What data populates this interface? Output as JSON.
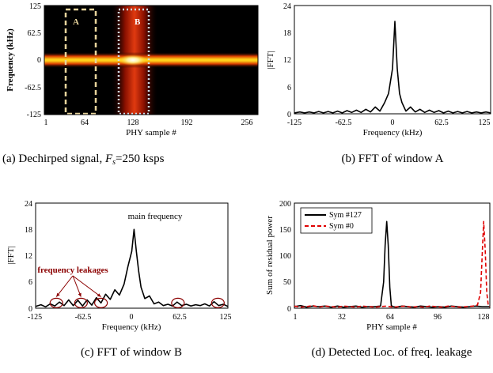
{
  "chart_data": [
    {
      "type": "heatmap",
      "caption": "(a) Dechirped signal, Fs=250 ksps",
      "xlabel": "PHY sample #",
      "ylabel": "Frequency (kHz)",
      "xlim": [
        1,
        256
      ],
      "ylim": [
        -125,
        125
      ],
      "xticks": [
        "1",
        "64",
        "128",
        "192",
        "256"
      ],
      "yticks": [
        "125",
        "62.5",
        "0",
        "-62.5",
        "-125"
      ],
      "bright_band_frequency": 0,
      "bright_column_sample": 128,
      "colors": {
        "background": "#000000",
        "band": "#ffd21a",
        "column": "#cc2200"
      },
      "windows": [
        {
          "label": "A",
          "x_range": [
            32,
            64
          ],
          "color": "#e8d49c"
        },
        {
          "label": "B",
          "x_range": [
            112,
            144
          ],
          "color": "#cfe0ee"
        }
      ]
    },
    {
      "type": "line",
      "caption": "(b) FFT of window A",
      "xlabel": "Frequency (kHz)",
      "ylabel": "|FFT|",
      "xlim": [
        -125,
        125
      ],
      "ylim": [
        0,
        24
      ],
      "xticks": [
        "-125",
        "-62.5",
        "0",
        "62.5",
        "125"
      ],
      "yticks": [
        "0",
        "6",
        "12",
        "18",
        "24"
      ],
      "series": [
        {
          "x": [
            -125,
            -118,
            -112,
            -106,
            -100,
            -94,
            -88,
            -82,
            -76,
            -70,
            -64,
            -58,
            -52,
            -46,
            -40,
            -34,
            -28,
            -22,
            -16,
            -10,
            -5,
            0,
            3,
            6,
            9,
            12,
            17,
            23,
            29,
            35,
            41,
            47,
            53,
            59,
            65,
            71,
            77,
            83,
            89,
            95,
            101,
            107,
            113,
            119,
            125
          ],
          "y": [
            0.2,
            0.4,
            0.2,
            0.4,
            0.2,
            0.5,
            0.2,
            0.5,
            0.2,
            0.6,
            0.2,
            0.7,
            0.3,
            0.8,
            0.3,
            1.0,
            0.4,
            1.5,
            0.6,
            2.5,
            4.5,
            10,
            20.5,
            10,
            4.5,
            2.5,
            0.6,
            1.5,
            0.4,
            1.0,
            0.3,
            0.8,
            0.3,
            0.7,
            0.2,
            0.6,
            0.2,
            0.5,
            0.2,
            0.5,
            0.2,
            0.4,
            0.2,
            0.4,
            0.2
          ],
          "color": "#000000"
        }
      ]
    },
    {
      "type": "line",
      "caption": "(c) FFT of window B",
      "xlabel": "Frequency (kHz)",
      "ylabel": "|FFT|",
      "xlim": [
        -125,
        125
      ],
      "ylim": [
        0,
        24
      ],
      "xticks": [
        "-125",
        "-62.5",
        "0",
        "62.5",
        "125"
      ],
      "yticks": [
        "0",
        "6",
        "12",
        "18",
        "24"
      ],
      "series": [
        {
          "x": [
            -125,
            -118,
            -112,
            -106,
            -100,
            -94,
            -88,
            -82,
            -76,
            -70,
            -64,
            -58,
            -52,
            -46,
            -40,
            -34,
            -28,
            -22,
            -16,
            -10,
            -5,
            0,
            3,
            6,
            9,
            12,
            17,
            23,
            29,
            35,
            41,
            47,
            53,
            59,
            65,
            71,
            77,
            83,
            89,
            95,
            101,
            107,
            113,
            119,
            125
          ],
          "y": [
            0.4,
            0.8,
            0.3,
            1.0,
            0.5,
            1.4,
            0.6,
            1.9,
            0.6,
            1.8,
            0.5,
            1.9,
            0.7,
            2.4,
            1.2,
            3.2,
            2.0,
            4.2,
            3.0,
            5.5,
            9.5,
            13,
            18,
            13,
            8.5,
            4.8,
            2.2,
            2.8,
            1.0,
            1.4,
            0.6,
            0.9,
            0.5,
            1.4,
            0.6,
            0.9,
            0.5,
            0.8,
            0.6,
            1.0,
            0.5,
            1.5,
            0.6,
            0.9,
            0.4
          ],
          "color": "#000000"
        }
      ],
      "annotations": [
        {
          "text": "main frequency",
          "x": 20,
          "y": 21
        },
        {
          "text": "frequency leakages",
          "x": -82,
          "y": 8,
          "color": "#8b0000"
        }
      ],
      "circled_x": [
        -98,
        -66,
        -40,
        60,
        112
      ],
      "arrows_to_x": [
        -98,
        -66,
        -40
      ]
    },
    {
      "type": "line",
      "caption": "(d) Detected Loc. of freq. leakage",
      "xlabel": "PHY sample #",
      "ylabel": "Sum of residual power",
      "xlim": [
        1,
        128
      ],
      "ylim": [
        0,
        200
      ],
      "xticks": [
        "1",
        "32",
        "64",
        "96",
        "128"
      ],
      "yticks": [
        "0",
        "50",
        "100",
        "150",
        "200"
      ],
      "legend_position": "top-left",
      "series": [
        {
          "name": "Sym #127",
          "color": "#000000",
          "dash": "solid",
          "x": [
            1,
            5,
            9,
            13,
            17,
            21,
            25,
            29,
            33,
            37,
            41,
            45,
            49,
            53,
            57,
            59,
            60,
            61,
            62,
            63,
            64,
            65,
            67,
            71,
            75,
            79,
            83,
            87,
            91,
            95,
            99,
            103,
            107,
            111,
            115,
            119,
            123,
            128
          ],
          "y": [
            3,
            5,
            2,
            4,
            3,
            4,
            2,
            4,
            2,
            3,
            4,
            2,
            3,
            3,
            4,
            50,
            120,
            165,
            120,
            40,
            5,
            3,
            2,
            4,
            3,
            2,
            4,
            3,
            2,
            3,
            2,
            4,
            3,
            2,
            3,
            4,
            3,
            3
          ]
        },
        {
          "name": "Sym #0",
          "color": "#e00000",
          "dash": "dashed",
          "x": [
            1,
            5,
            9,
            13,
            17,
            21,
            25,
            29,
            33,
            37,
            41,
            45,
            49,
            53,
            57,
            61,
            65,
            69,
            73,
            77,
            81,
            85,
            89,
            93,
            97,
            101,
            105,
            109,
            113,
            117,
            120,
            122,
            123,
            124,
            125,
            126,
            127,
            128
          ],
          "y": [
            4,
            2,
            3,
            5,
            2,
            4,
            3,
            2,
            4,
            3,
            2,
            4,
            3,
            2,
            3,
            4,
            2,
            3,
            4,
            2,
            3,
            2,
            4,
            3,
            2,
            4,
            3,
            2,
            3,
            4,
            6,
            30,
            100,
            165,
            110,
            30,
            5,
            3
          ]
        }
      ]
    }
  ]
}
